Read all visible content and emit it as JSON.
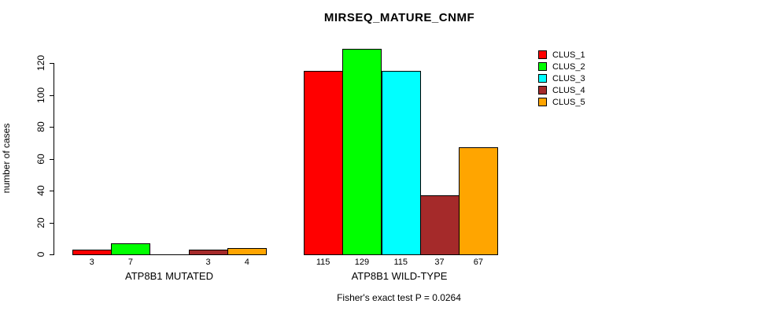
{
  "title": "MIRSEQ_MATURE_CNMF",
  "footer": "Fisher's exact test P = 0.0264",
  "y_axis": {
    "label": "number of cases",
    "ticks": [
      0,
      20,
      40,
      60,
      80,
      100,
      120
    ]
  },
  "legend": {
    "items": [
      {
        "label": "CLUS_1",
        "color": "#ff0000"
      },
      {
        "label": "CLUS_2",
        "color": "#00ff00"
      },
      {
        "label": "CLUS_3",
        "color": "#00ffff"
      },
      {
        "label": "CLUS_4",
        "color": "#a52a2a"
      },
      {
        "label": "CLUS_5",
        "color": "#ffa500"
      }
    ]
  },
  "chart_data": {
    "type": "bar",
    "title": "MIRSEQ_MATURE_CNMF",
    "ylabel": "number of cases",
    "xlabel": "",
    "ylim": [
      0,
      129
    ],
    "grid": false,
    "legend_position": "right",
    "categories": [
      "ATP8B1 MUTATED",
      "ATP8B1 WILD-TYPE"
    ],
    "series": [
      {
        "name": "CLUS_1",
        "color": "#ff0000",
        "values": [
          3,
          115
        ]
      },
      {
        "name": "CLUS_2",
        "color": "#00ff00",
        "values": [
          7,
          129
        ]
      },
      {
        "name": "CLUS_3",
        "color": "#00ffff",
        "values": [
          0,
          115
        ]
      },
      {
        "name": "CLUS_4",
        "color": "#a52a2a",
        "values": [
          3,
          37
        ]
      },
      {
        "name": "CLUS_5",
        "color": "#ffa500",
        "values": [
          4,
          67
        ]
      }
    ],
    "bar_count_labels": [
      [
        "3",
        "7",
        "",
        "3",
        "4"
      ],
      [
        "115",
        "129",
        "115",
        "37",
        "67"
      ]
    ],
    "annotation": "Fisher's exact test P = 0.0264"
  }
}
